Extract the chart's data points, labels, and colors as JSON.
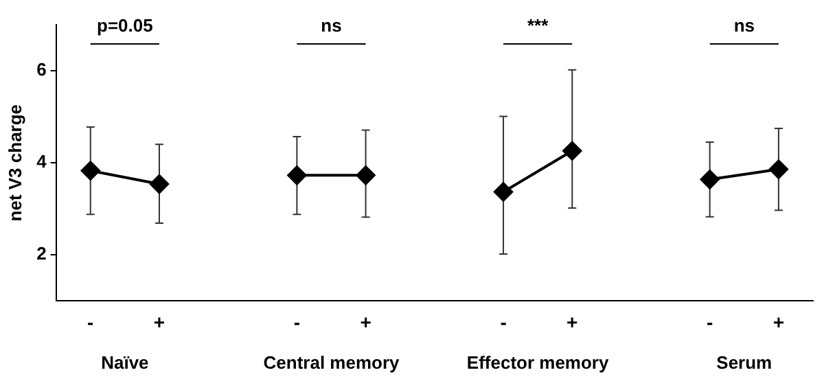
{
  "chart_data": {
    "type": "line",
    "ylabel": "net V3 charge",
    "categories": [
      "-",
      "+",
      null,
      "-",
      "+",
      null,
      "-",
      "+",
      null,
      "-",
      "+"
    ],
    "series": [
      {
        "color": "#000000",
        "values": [
          3.83,
          3.54,
          null,
          null,
          null,
          null,
          null,
          null,
          null,
          null,
          null
        ],
        "errors": [
          [
            2.88,
            4.78
          ],
          [
            2.69,
            4.4
          ],
          null,
          null,
          null,
          null,
          null,
          null,
          null,
          null,
          null
        ]
      },
      {
        "color": "#000000",
        "values": [
          null,
          null,
          null,
          3.73,
          3.73,
          null,
          null,
          null,
          null,
          null,
          null
        ],
        "errors": [
          null,
          null,
          null,
          [
            2.88,
            4.57
          ],
          [
            2.82,
            4.71
          ],
          null,
          null,
          null,
          null,
          null,
          null
        ]
      },
      {
        "color": "#000000",
        "values": [
          null,
          null,
          null,
          null,
          null,
          null,
          3.37,
          4.26,
          null,
          null,
          null
        ],
        "errors": [
          null,
          null,
          null,
          null,
          null,
          null,
          [
            2.02,
            5.01
          ],
          [
            3.02,
            6.02
          ],
          null,
          null,
          null
        ]
      },
      {
        "color": "#000000",
        "values": [
          null,
          null,
          null,
          null,
          null,
          null,
          null,
          null,
          null,
          3.64,
          3.86
        ],
        "errors": [
          null,
          null,
          null,
          null,
          null,
          null,
          null,
          null,
          null,
          [
            2.83,
            4.45
          ],
          [
            2.97,
            4.75
          ]
        ]
      }
    ],
    "annotations": [
      "p=0.05",
      "ns",
      "***",
      "ns",
      "Naïve",
      "Central memory",
      "Effector memory",
      "Serum"
    ],
    "ylim": [
      1,
      7
    ],
    "yticks": [
      2,
      4,
      6
    ],
    "grid": false,
    "legend": false,
    "marker": "diamond",
    "line_style": "solid"
  }
}
